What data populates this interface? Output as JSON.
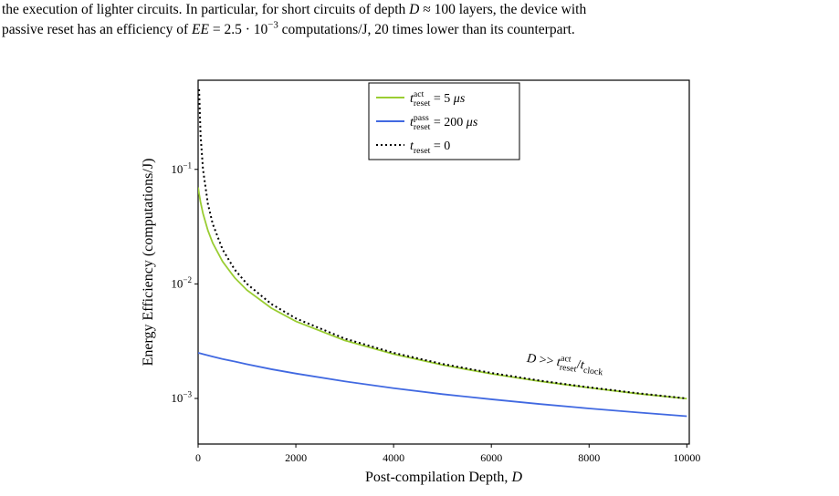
{
  "paragraph": {
    "lines": [
      [
        {
          "text": "the execution of lighter circuits. In particular, for short circuits of depth "
        },
        {
          "text": "D",
          "italic": true
        },
        {
          "text": " ≈ 100 layers, the device with"
        }
      ],
      [
        {
          "text": "passive reset has an efficiency of "
        },
        {
          "text": "EE",
          "italic": true
        },
        {
          "text": " = 2.5 · 10"
        },
        {
          "sup": "−3"
        },
        {
          "text": " computations/J, 20 times lower than its counterpart."
        }
      ]
    ]
  },
  "chart_data": {
    "type": "line",
    "x": [
      0,
      20,
      50,
      100,
      200,
      300,
      500,
      750,
      1000,
      1500,
      2000,
      3000,
      4000,
      5000,
      6000,
      7000,
      8000,
      9000,
      10000
    ],
    "series": [
      {
        "name": [
          {
            "text": "t",
            "italic": true
          },
          {
            "sup": "act",
            "sub": "reset"
          },
          {
            "text": " = 5 "
          },
          {
            "text": "μs",
            "italic": true
          }
        ],
        "color": "#9acd32",
        "dash": "solid",
        "values": [
          0.0697,
          0.0612,
          0.0518,
          0.0412,
          0.0293,
          0.0227,
          0.0157,
          0.0113,
          0.00882,
          0.00614,
          0.00471,
          0.00321,
          0.00244,
          0.00196,
          0.00164,
          0.00141,
          0.00124,
          0.0011,
          0.000996
        ]
      },
      {
        "name": [
          {
            "text": "t",
            "italic": true
          },
          {
            "sup": "pass",
            "sub": "reset"
          },
          {
            "text": " = 200 "
          },
          {
            "text": "μs",
            "italic": true
          }
        ],
        "color": "#4169e1",
        "dash": "solid",
        "values": [
          0.0025,
          0.00249,
          0.00247,
          0.00244,
          0.00238,
          0.00232,
          0.00221,
          0.0021,
          0.00199,
          0.0018,
          0.00165,
          0.00141,
          0.00123,
          0.00109,
          0.000983,
          0.000893,
          0.000818,
          0.000754,
          0.0007
        ]
      },
      {
        "name": [
          {
            "text": "t",
            "italic": true
          },
          {
            "sub": "reset"
          },
          {
            "text": " = 0"
          }
        ],
        "color": "#000000",
        "dash": "dotted",
        "values": [
          null,
          0.5,
          0.2,
          0.1,
          0.05,
          0.0333,
          0.02,
          0.0133,
          0.01,
          0.00667,
          0.005,
          0.00333,
          0.0025,
          0.002,
          0.00167,
          0.00143,
          0.00125,
          0.00111,
          0.001
        ]
      }
    ],
    "xlim": [
      0,
      10050
    ],
    "xticks": [
      0,
      2000,
      4000,
      6000,
      8000,
      10000
    ],
    "ylim": [
      0.0004,
      0.6
    ],
    "log_y": true,
    "yticks": [
      {
        "value": 0.1,
        "label": [
          {
            "text": "10"
          },
          {
            "sup": "−1"
          }
        ]
      },
      {
        "value": 0.01,
        "label": [
          {
            "text": "10"
          },
          {
            "sup": "−2"
          }
        ]
      },
      {
        "value": 0.001,
        "label": [
          {
            "text": "10"
          },
          {
            "sup": "−3"
          }
        ]
      }
    ],
    "x_label": [
      {
        "text": "Post-compilation Depth, "
      },
      {
        "text": "D",
        "italic": true
      }
    ],
    "y_label": "Energy Efficiency (computations/J)",
    "legend": "upper center",
    "annotation": {
      "x": 7500,
      "y": 0.0019,
      "text": [
        {
          "text": "D",
          "italic": true
        },
        {
          "text": " >> "
        },
        {
          "text": "t",
          "italic": true
        },
        {
          "sup": "act",
          "sub": "reset"
        },
        {
          "text": "/"
        },
        {
          "text": "t",
          "italic": true
        },
        {
          "sub": "clock"
        }
      ]
    }
  }
}
